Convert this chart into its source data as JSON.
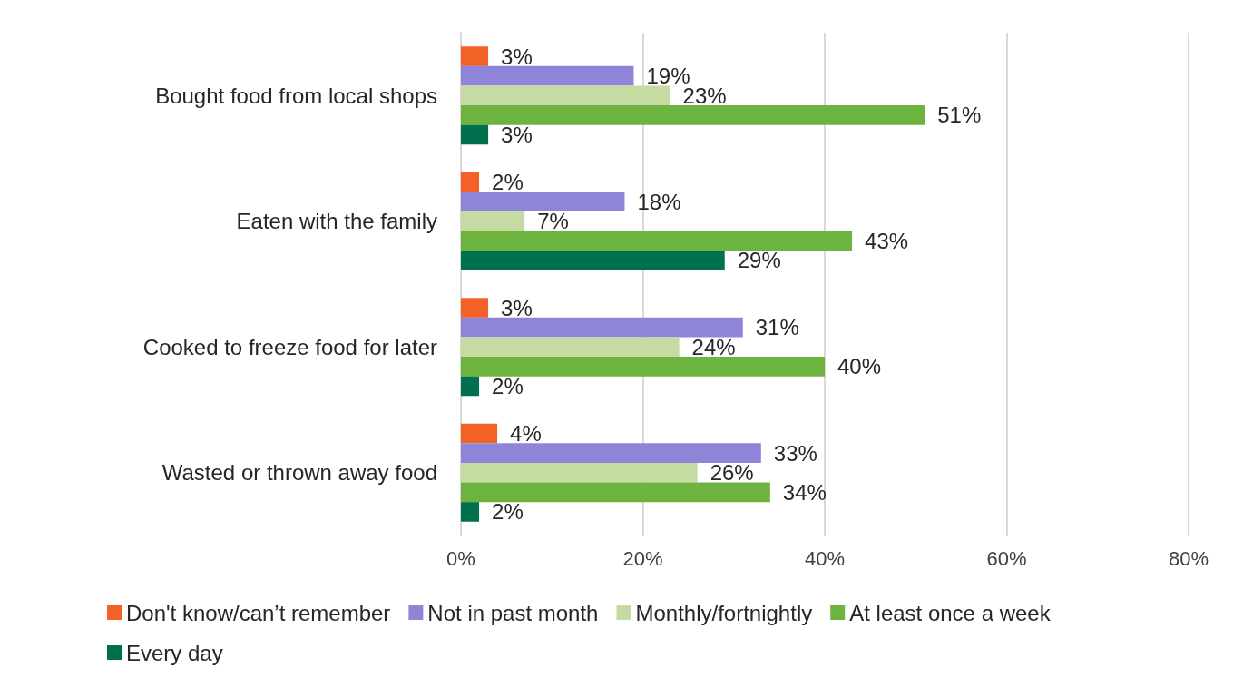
{
  "chart_data": {
    "type": "bar",
    "orientation": "horizontal",
    "categories": [
      "Bought food from local shops",
      "Eaten with the family",
      "Cooked to freeze food for later",
      "Wasted or thrown away food"
    ],
    "series": [
      {
        "name": "Don't know/can’t remember",
        "color": "#f26126",
        "values": [
          3,
          2,
          3,
          4
        ],
        "value_labels": [
          "3%",
          "2%",
          "3%",
          "4%"
        ]
      },
      {
        "name": "Not in past month",
        "color": "#8e85d8",
        "values": [
          19,
          18,
          31,
          33
        ],
        "value_labels": [
          "19%",
          "18%",
          "31%",
          "33%"
        ]
      },
      {
        "name": "Monthly/fortnightly",
        "color": "#c5dba1",
        "values": [
          23,
          7,
          24,
          26
        ],
        "value_labels": [
          "23%",
          "7%",
          "24%",
          "26%"
        ]
      },
      {
        "name": "At least once a week",
        "color": "#6db33f",
        "values": [
          51,
          43,
          40,
          34
        ],
        "value_labels": [
          "51%",
          "43%",
          "40%",
          "34%"
        ]
      },
      {
        "name": "Every day",
        "color": "#00704f",
        "values": [
          3,
          29,
          2,
          2
        ],
        "value_labels": [
          "3%",
          "29%",
          "2%",
          "2%"
        ]
      }
    ],
    "xlim": [
      0,
      80
    ],
    "xticks": [
      {
        "value": 0,
        "label": "0%"
      },
      {
        "value": 20,
        "label": "20%"
      },
      {
        "value": 40,
        "label": "40%"
      },
      {
        "value": 60,
        "label": "60%"
      },
      {
        "value": 80,
        "label": "80%"
      }
    ],
    "grid": "x",
    "legend": "bottom"
  }
}
